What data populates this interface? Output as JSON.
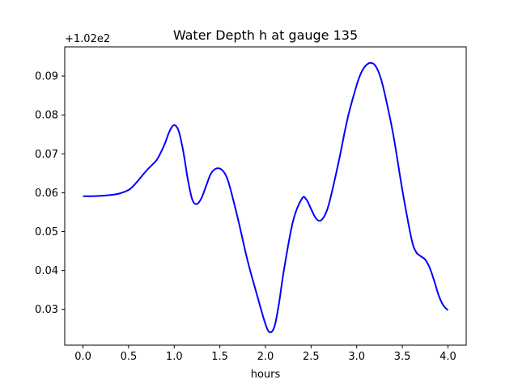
{
  "chart_data": {
    "type": "line",
    "title": "Water Depth h at gauge 135",
    "xlabel": "hours",
    "ylabel": "",
    "offset_label": "+1.02e2",
    "xlim": [
      -0.2,
      4.2
    ],
    "ylim": [
      0.0208,
      0.0975
    ],
    "xticks": [
      0.0,
      0.5,
      1.0,
      1.5,
      2.0,
      2.5,
      3.0,
      3.5,
      4.0
    ],
    "xtick_labels": [
      "0.0",
      "0.5",
      "1.0",
      "1.5",
      "2.0",
      "2.5",
      "3.0",
      "3.5",
      "4.0"
    ],
    "yticks": [
      0.03,
      0.04,
      0.05,
      0.06,
      0.07,
      0.08,
      0.09
    ],
    "ytick_labels": [
      "0.03",
      "0.04",
      "0.05",
      "0.06",
      "0.07",
      "0.08",
      "0.09"
    ],
    "grid": false,
    "legend": "none",
    "series": [
      {
        "color": "#0000ff",
        "x": [
          0.0,
          0.1,
          0.2,
          0.3,
          0.4,
          0.5,
          0.55,
          0.6,
          0.7,
          0.8,
          0.85,
          0.9,
          0.95,
          1.0,
          1.05,
          1.1,
          1.15,
          1.2,
          1.25,
          1.3,
          1.35,
          1.4,
          1.45,
          1.5,
          1.55,
          1.6,
          1.7,
          1.8,
          1.9,
          2.0,
          2.05,
          2.1,
          2.15,
          2.2,
          2.3,
          2.4,
          2.45,
          2.5,
          2.55,
          2.6,
          2.65,
          2.7,
          2.8,
          2.9,
          3.0,
          3.05,
          3.1,
          3.15,
          3.2,
          3.25,
          3.3,
          3.4,
          3.5,
          3.6,
          3.65,
          3.7,
          3.75,
          3.8,
          3.85,
          3.9,
          3.95,
          4.0
        ],
        "y": [
          0.0591,
          0.0591,
          0.0592,
          0.0594,
          0.0598,
          0.0607,
          0.0617,
          0.063,
          0.0658,
          0.0682,
          0.0702,
          0.0728,
          0.0759,
          0.0774,
          0.0758,
          0.0705,
          0.0633,
          0.0581,
          0.0571,
          0.0587,
          0.0618,
          0.0648,
          0.0661,
          0.0662,
          0.0651,
          0.0623,
          0.0531,
          0.0429,
          0.0343,
          0.0262,
          0.0241,
          0.0257,
          0.0318,
          0.0398,
          0.0525,
          0.0585,
          0.0582,
          0.0558,
          0.0535,
          0.0528,
          0.0542,
          0.0575,
          0.0677,
          0.0791,
          0.0877,
          0.0909,
          0.0927,
          0.0934,
          0.0928,
          0.0904,
          0.0862,
          0.075,
          0.0607,
          0.0482,
          0.0448,
          0.0437,
          0.0428,
          0.0407,
          0.0373,
          0.0335,
          0.031,
          0.0298
        ]
      }
    ]
  }
}
